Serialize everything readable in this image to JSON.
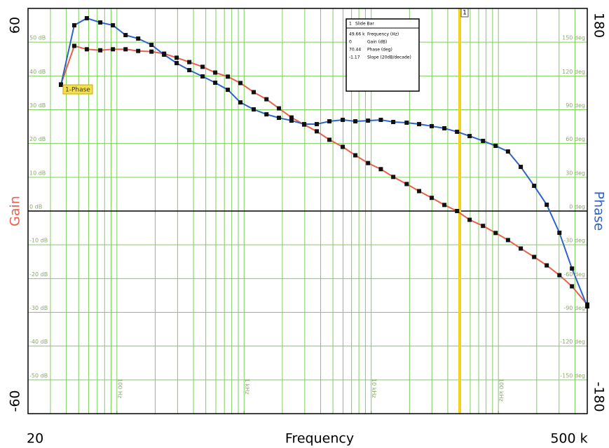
{
  "chart_data": {
    "type": "line",
    "x_label": "Frequency",
    "y_label": "Gain",
    "y2_label": "Phase",
    "log_x": true,
    "grid": true,
    "xlim": [
      20,
      500000
    ],
    "xlim_ticks": [
      20,
      {
        "value": 500000,
        "label": "500 k"
      }
    ],
    "xticks": [
      {
        "value": 100,
        "label": "100 Hz"
      },
      {
        "value": 1000,
        "label": "1 kHz"
      },
      {
        "value": 10000,
        "label": "10 kHz"
      },
      {
        "value": 100000,
        "label": "100 kHz"
      }
    ],
    "xgrid": [
      30,
      40,
      50,
      60,
      70,
      80,
      90,
      100,
      200,
      300,
      400,
      500,
      600,
      700,
      800,
      900,
      1000,
      2000,
      3000,
      4000,
      5000,
      6000,
      7000,
      8000,
      9000,
      10000,
      20000,
      30000,
      40000,
      50000,
      60000,
      70000,
      80000,
      90000,
      100000,
      200000,
      300000,
      400000
    ],
    "ylim": [
      -60,
      60
    ],
    "yticks": [
      {
        "value": -50,
        "label": "-50 dB"
      },
      {
        "value": -40,
        "label": "-40 dB"
      },
      {
        "value": -30,
        "label": "-30 dB"
      },
      {
        "value": -20,
        "label": "-20 dB"
      },
      {
        "value": -10,
        "label": "-10 dB"
      },
      {
        "value": 0,
        "label": "0 dB"
      },
      {
        "value": 10,
        "label": "10 dB"
      },
      {
        "value": 20,
        "label": "20 dB"
      },
      {
        "value": 30,
        "label": "30 dB"
      },
      {
        "value": 40,
        "label": "40 dB"
      },
      {
        "value": 50,
        "label": "50 dB"
      }
    ],
    "y2lim": [
      -180,
      180
    ],
    "y2ticks": [
      {
        "value": -150,
        "label": "-150 deg"
      },
      {
        "value": -120,
        "label": "-120 deg"
      },
      {
        "value": -90,
        "label": "-90 deg"
      },
      {
        "value": -60,
        "label": "-60 deg"
      },
      {
        "value": -30,
        "label": "-30 deg"
      },
      {
        "value": 0,
        "label": "0 deg"
      },
      {
        "value": 30,
        "label": "30 deg"
      },
      {
        "value": 60,
        "label": "60 deg"
      },
      {
        "value": 90,
        "label": "90 deg"
      },
      {
        "value": 120,
        "label": "120 deg"
      },
      {
        "value": 150,
        "label": "150 deg"
      }
    ],
    "x": [
      36.3,
      46.2,
      58,
      74,
      93,
      117,
      147,
      187,
      235,
      295,
      371,
      472,
      593,
      745,
      936,
      1190,
      1500,
      1880,
      2360,
      2970,
      3730,
      4690,
      5970,
      7500,
      9440,
      11900,
      14900,
      19000,
      23800,
      29900,
      37600,
      47300,
      59400,
      75700,
      95100,
      119000,
      150000,
      191000,
      240000,
      302000,
      379000,
      500000
    ],
    "series": [
      {
        "color": "#e8604c",
        "values": [
          37.5,
          48.9,
          47.9,
          47.6,
          47.9,
          47.9,
          47.4,
          47.2,
          46.6,
          45.4,
          44.1,
          42.7,
          41.0,
          39.8,
          37.9,
          35.2,
          33.1,
          30.4,
          27.7,
          25.6,
          23.6,
          21.1,
          19.0,
          16.5,
          14.2,
          12.4,
          10.1,
          8.0,
          5.9,
          3.9,
          1.8,
          0,
          -2.6,
          -4.4,
          -6.5,
          -8.6,
          -11.1,
          -13.6,
          -16.1,
          -19.0,
          -22.3,
          -27.7
        ]
      },
      {
        "color": "#2f63c8",
        "axis": "y2",
        "values": [
          112.1,
          165,
          171.3,
          167.5,
          165,
          156.3,
          153.2,
          147.6,
          138.9,
          131.4,
          125.2,
          119.6,
          114,
          107.7,
          96.5,
          90.3,
          85.9,
          82.8,
          80.3,
          77.2,
          77.2,
          79.7,
          81,
          79.7,
          80.3,
          81,
          79.1,
          78.5,
          77.2,
          75.4,
          73.5,
          70.4,
          66.6,
          62.3,
          57.9,
          52.9,
          39.2,
          22.4,
          5.6,
          -19.3,
          -51.1,
          -84.7
        ]
      }
    ],
    "annotation": "1-Phase",
    "cursor": {
      "label": "1",
      "x": 49660,
      "color": "#f2d21a",
      "title": "Slide Bar",
      "readout": [
        [
          "49.66 k",
          "Frequency (Hz)"
        ],
        [
          "0",
          "Gain (dB)"
        ],
        [
          "70.44",
          "Phase (deg)"
        ],
        [
          "-1.17",
          "Slope (20dB/decade)"
        ]
      ]
    }
  }
}
